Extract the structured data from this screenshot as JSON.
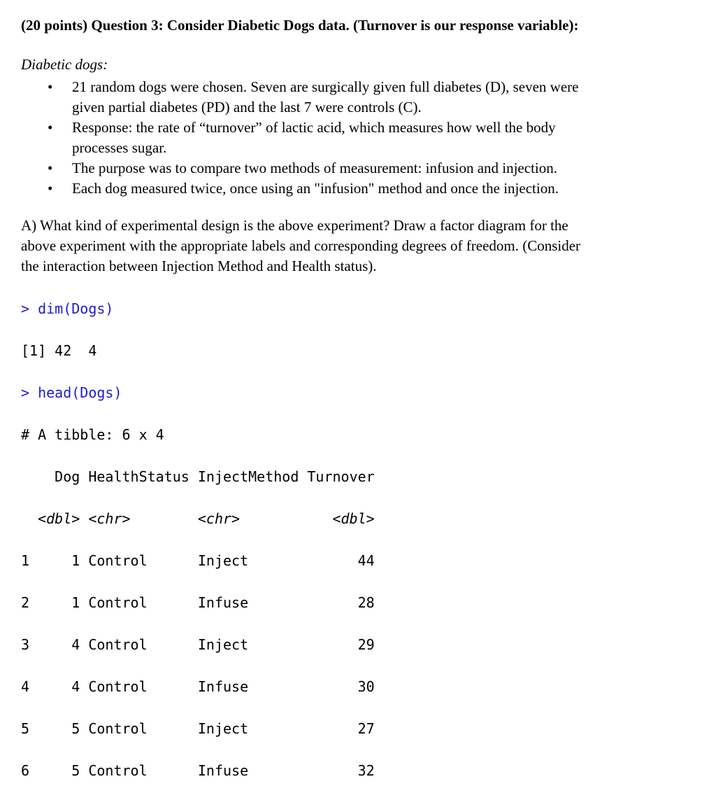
{
  "page": {
    "title": "(20 points) Question 3: Consider Diabetic Dogs data. (Turnover is our response variable):",
    "subtitle": "Diabetic dogs:",
    "bullet_char": "•"
  },
  "bullets": [
    {
      "lines": [
        "21 random dogs were chosen. Seven are surgically given full diabetes (D), seven were",
        "given partial diabetes (PD) and the last 7 were controls (C)."
      ]
    },
    {
      "lines": [
        "Response: the rate of “turnover” of lactic acid, which measures how well the body",
        "processes sugar."
      ]
    },
    {
      "lines": [
        "The purpose was to compare two methods of measurement: infusion and injection."
      ]
    },
    {
      "lines": [
        "Each dog measured twice, once using an \"infusion\" method and once the injection."
      ]
    }
  ],
  "question_a": {
    "lines": [
      "A) What kind of experimental design is the above experiment? Draw a factor diagram for the",
      "above experiment with the appropriate labels and corresponding degrees of freedom. (Consider",
      "the interaction between Injection Method and Health status)."
    ]
  },
  "console": {
    "command_color": "#1c1ccd",
    "text_color": "#000000",
    "lines": [
      {
        "text": "> dim(Dogs)",
        "type": "command"
      },
      {
        "text": "[1] 42  4",
        "type": "output"
      },
      {
        "text": "> head(Dogs)",
        "type": "command"
      },
      {
        "text": "# A tibble: 6 x 4",
        "type": "output"
      },
      {
        "text": "    Dog HealthStatus InjectMethod Turnover",
        "type": "header"
      },
      {
        "text": "  <dbl> <chr>        <chr>           <dbl>",
        "type": "types"
      },
      {
        "text": "1     1 Control      Inject             44",
        "type": "row"
      },
      {
        "text": "2     1 Control      Infuse             28",
        "type": "row"
      },
      {
        "text": "3     4 Control      Inject             29",
        "type": "row"
      },
      {
        "text": "4     4 Control      Infuse             30",
        "type": "row"
      },
      {
        "text": "5     5 Control      Inject             27",
        "type": "row"
      },
      {
        "text": "6     5 Control      Infuse             32",
        "type": "row"
      }
    ]
  }
}
